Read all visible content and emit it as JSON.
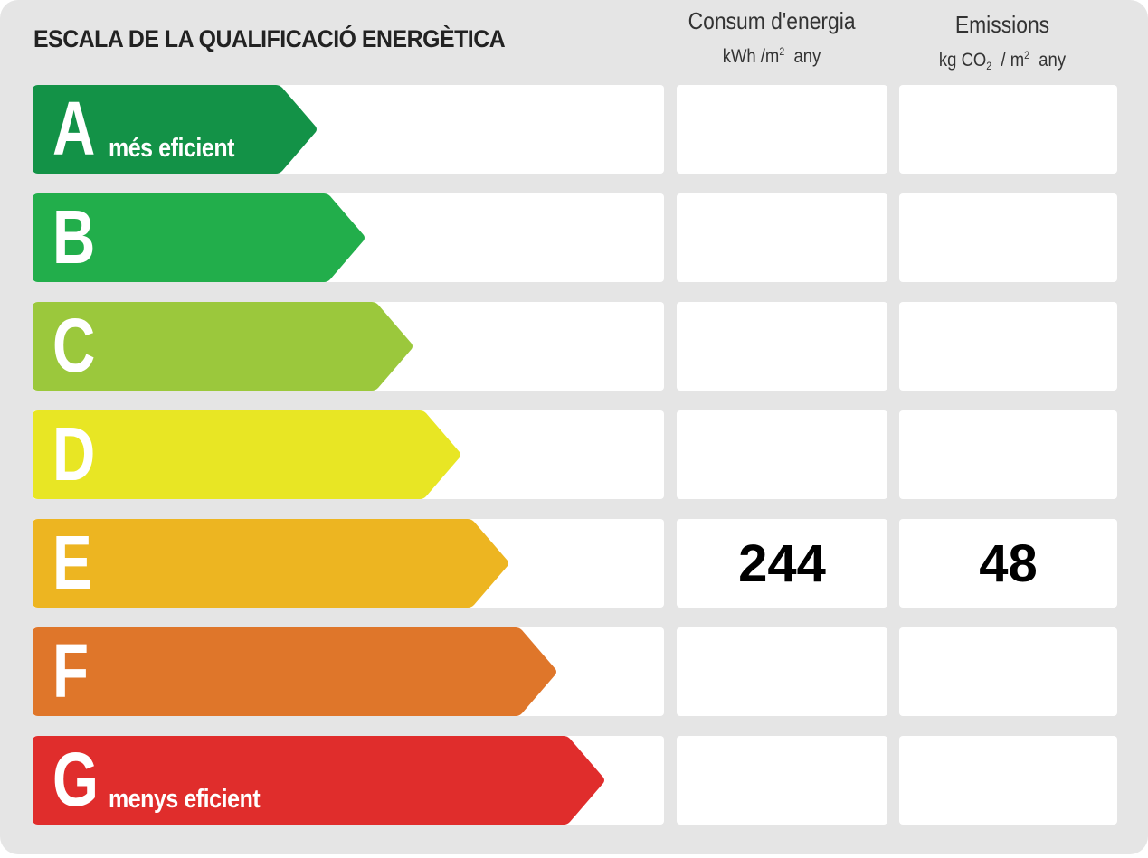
{
  "title": "ESCALA DE LA QUALIFICACIÓ ENERGÈTICA",
  "columns": {
    "energy": {
      "label": "Consum d'energia",
      "unit_prefix": "kWh /m",
      "unit_sup": "2",
      "unit_suffix": "any"
    },
    "emissions": {
      "label": "Emissions",
      "unit_prefix": "kg CO",
      "unit_sub": "2",
      "unit_mid": "/ m",
      "unit_sup": "2",
      "unit_suffix": "any"
    }
  },
  "ratings": [
    {
      "letter": "A",
      "sublabel": "més eficient",
      "color": "#139247",
      "energy": "",
      "emissions": ""
    },
    {
      "letter": "B",
      "sublabel": "",
      "color": "#22ae4b",
      "energy": "",
      "emissions": ""
    },
    {
      "letter": "C",
      "sublabel": "",
      "color": "#9bc83c",
      "energy": "",
      "emissions": ""
    },
    {
      "letter": "D",
      "sublabel": "",
      "color": "#e8e624",
      "energy": "",
      "emissions": ""
    },
    {
      "letter": "E",
      "sublabel": "",
      "color": "#edb521",
      "energy": "244",
      "emissions": "48"
    },
    {
      "letter": "F",
      "sublabel": "",
      "color": "#df762a",
      "energy": "",
      "emissions": ""
    },
    {
      "letter": "G",
      "sublabel": "menys eficient",
      "color": "#e02d2c",
      "energy": "",
      "emissions": ""
    }
  ]
}
